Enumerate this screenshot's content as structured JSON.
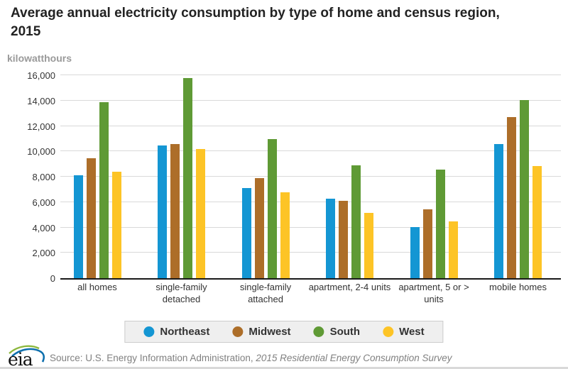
{
  "chart_data": {
    "type": "bar",
    "title": "Average annual electricity consumption by type of home and census region, 2015",
    "ylabel": "kilowatthours",
    "xlabel": "",
    "ylim": [
      0,
      16000
    ],
    "ytick_step": 2000,
    "ytick_labels": [
      "0",
      "2,000",
      "4,000",
      "6,000",
      "8,000",
      "10,000",
      "12,000",
      "14,000",
      "16,000"
    ],
    "grid": true,
    "legend_position": "bottom",
    "categories": [
      "all homes",
      "single-family detached",
      "single-family attached",
      "apartment, 2-4 units",
      "apartment, 5 or > units",
      "mobile homes"
    ],
    "series": [
      {
        "name": "Northeast",
        "color": "#1496d3",
        "values": [
          8100,
          10450,
          7100,
          6250,
          4050,
          10550
        ]
      },
      {
        "name": "Midwest",
        "color": "#ad6e29",
        "values": [
          9450,
          10600,
          7900,
          6100,
          5450,
          12700
        ]
      },
      {
        "name": "South",
        "color": "#5f9a35",
        "values": [
          13900,
          15750,
          10950,
          8900,
          8550,
          14050
        ]
      },
      {
        "name": "West",
        "color": "#fdc426",
        "values": [
          8400,
          10200,
          6750,
          5150,
          4500,
          8850
        ]
      }
    ]
  },
  "footer": {
    "logo_text": "eia",
    "source_prefix": "Source: U.S. Energy Information Administration, ",
    "source_italic": "2015 Residential Energy Consumption Survey"
  }
}
